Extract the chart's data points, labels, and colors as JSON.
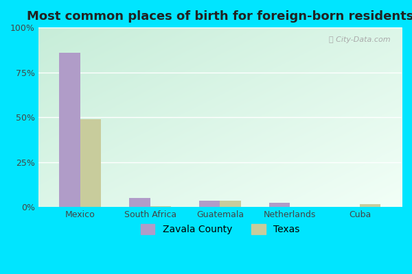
{
  "title": "Most common places of birth for foreign-born residents",
  "categories": [
    "Mexico",
    "South Africa",
    "Guatemala",
    "Netherlands",
    "Cuba"
  ],
  "zavala_values": [
    86,
    5,
    3.5,
    2.5,
    0
  ],
  "texas_values": [
    49,
    0.5,
    3.5,
    0,
    1.5
  ],
  "zavala_color": "#b09cc8",
  "texas_color": "#c8cc9c",
  "outer_background": "#00e5ff",
  "bg_topleft": [
    0.78,
    0.93,
    0.85,
    1.0
  ],
  "bg_botright": [
    0.95,
    1.0,
    0.97,
    1.0
  ],
  "ylim": [
    0,
    100
  ],
  "yticks": [
    0,
    25,
    50,
    75,
    100
  ],
  "ytick_labels": [
    "0%",
    "25%",
    "50%",
    "75%",
    "100%"
  ],
  "legend_labels": [
    "Zavala County",
    "Texas"
  ],
  "bar_width": 0.3,
  "title_fontsize": 13,
  "watermark": "City-Data.com"
}
